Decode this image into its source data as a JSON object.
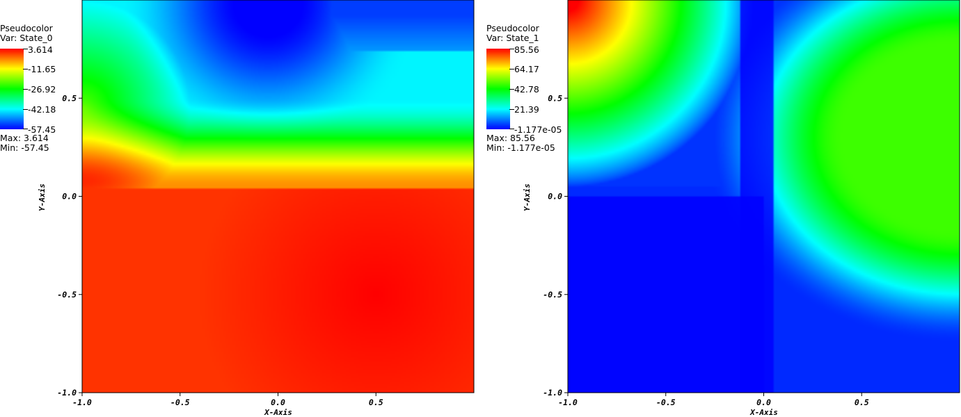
{
  "colors": {
    "scale": [
      "#ff0000",
      "#ffff00",
      "#00ff00",
      "#00ffff",
      "#0000ff"
    ]
  },
  "chart_data": [
    {
      "type": "heatmap",
      "legend": {
        "title": "Pseudocolor",
        "var": "Var: State_0",
        "labels": [
          "3.614",
          "-11.65",
          "-26.92",
          "-42.18",
          "-57.45"
        ],
        "max": "Max:  3.614",
        "min": "Min: -57.45"
      },
      "xlabel": "X-Axis",
      "ylabel": "Y-Axis",
      "xlim": [
        -1.0,
        1.0
      ],
      "ylim": [
        -1.0,
        1.0
      ],
      "xticks": [
        "-1.0",
        "-0.5",
        "0.0",
        "0.5"
      ],
      "yticks": [
        "-1.0",
        "-0.5",
        "0.0",
        "0.5"
      ],
      "vmin": -57.45,
      "vmax": 3.614,
      "field": "state_0"
    },
    {
      "type": "heatmap",
      "legend": {
        "title": "Pseudocolor",
        "var": "Var: State_1",
        "labels": [
          "85.56",
          "64.17",
          "42.78",
          "21.39",
          "-1.177e-05"
        ],
        "max": "Max:  85.56",
        "min": "Min: -1.177e-05"
      },
      "xlabel": "X-Axis",
      "ylabel": "Y-Axis",
      "xlim": [
        -1.0,
        1.0
      ],
      "ylim": [
        -1.0,
        1.0
      ],
      "xticks": [
        "-1.0",
        "-0.5",
        "0.0",
        "0.5"
      ],
      "yticks": [
        "-1.0",
        "-0.5",
        "0.0",
        "0.5"
      ],
      "vmin": -1.177e-05,
      "vmax": 85.56,
      "field": "state_1"
    }
  ]
}
